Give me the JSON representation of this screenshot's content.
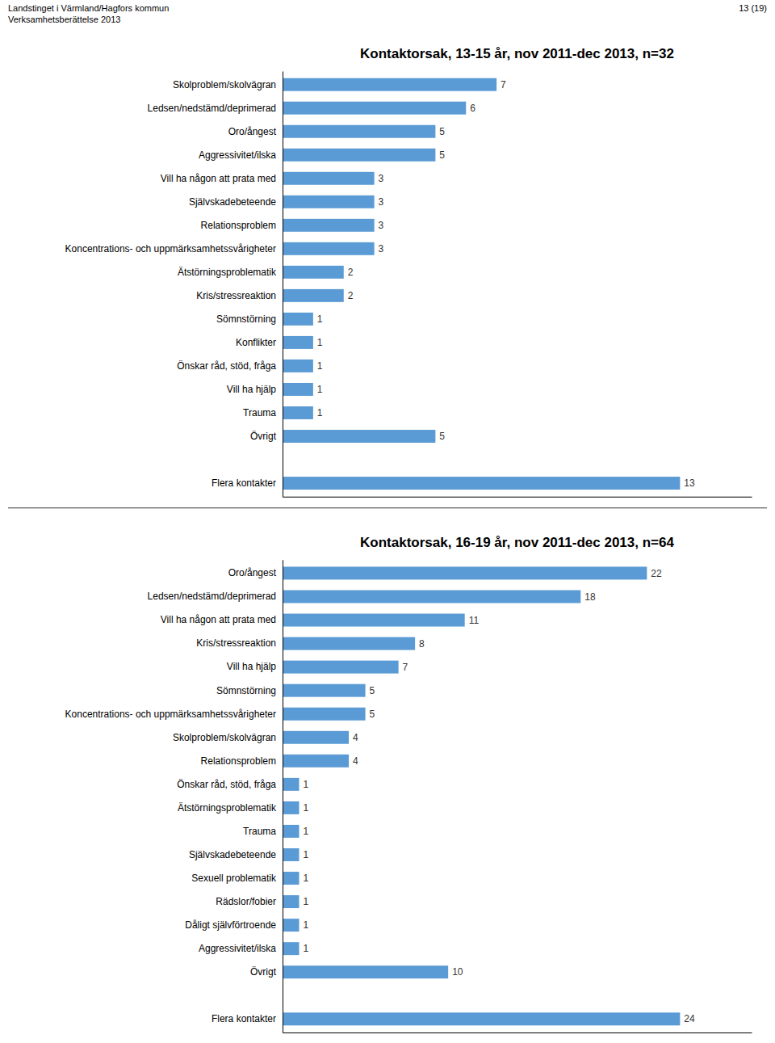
{
  "chart_data": [
    {
      "type": "bar",
      "orientation": "horizontal",
      "title": "Kontaktorsak, 13-15 år, nov 2011-dec 2013, n=32",
      "annotations": [
        "Landstinget i Värmland/Hagfors kommun\nVerksamhetsberättelse 2013",
        "13 (19)"
      ],
      "categories": [
        "Skolproblem/skolvägran",
        "Ledsen/nedstämd/deprimerad",
        "Oro/ångest",
        "Aggressivitet/ilska",
        "Vill ha någon att prata med",
        "Självskadebeteende",
        "Relationsproblem",
        "Koncentrations- och uppmärksamhetssvårigheter",
        "Ätstörningsproblematik",
        "Kris/stressreaktion",
        "Sömnstörning",
        "Konflikter",
        "Önskar råd, stöd, fråga",
        "Vill ha hjälp",
        "Trauma",
        "Övrigt",
        null,
        "Flera kontakter"
      ],
      "values": [
        7,
        6,
        5,
        5,
        3,
        3,
        3,
        3,
        2,
        2,
        1,
        1,
        1,
        1,
        1,
        5,
        0,
        13
      ],
      "color": "#5B9BD5",
      "xlim": [
        0,
        15.34
      ],
      "data_labels": true,
      "tick_labels": "y"
    },
    {
      "type": "bar",
      "orientation": "horizontal",
      "title": "Kontaktorsak, 16-19 år, nov 2011-dec 2013, n=64",
      "categories": [
        "Oro/ångest",
        "Ledsen/nedstämd/deprimerad",
        "Vill ha någon att prata med",
        "Kris/stressreaktion",
        "Vill ha hjälp",
        "Sömnstörning",
        "Koncentrations- och uppmärksamhetssvårigheter",
        "Skolproblem/skolvägran",
        "Relationsproblem",
        "Önskar råd, stöd, fråga",
        "Ätstörningsproblematik",
        "Trauma",
        "Självskadebeteende",
        "Sexuell problematik",
        "Rädslor/fobier",
        "Dåligt självförtroende",
        "Aggressivitet/ilska",
        "Övrigt",
        null,
        "Flera kontakter"
      ],
      "values": [
        22,
        18,
        11,
        8,
        7,
        5,
        5,
        4,
        4,
        1,
        1,
        1,
        1,
        1,
        1,
        1,
        1,
        10,
        0,
        24
      ],
      "color": "#5B9BD5",
      "xlim": [
        0,
        28.32
      ],
      "data_labels": true,
      "tick_labels": "y"
    }
  ]
}
